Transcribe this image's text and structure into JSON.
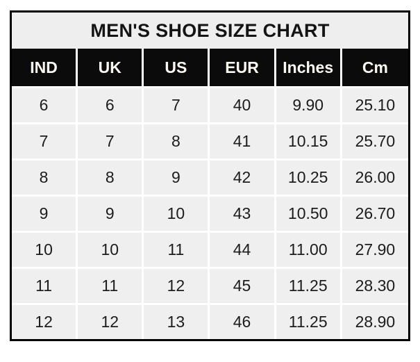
{
  "colors": {
    "page_bg": "#ffffff",
    "outer_border": "#000000",
    "title_bg": "#efeeee",
    "title_text": "#141414",
    "header_bg": "#0b0b0b",
    "header_text": "#fbfaf2",
    "cell_bg": "#f0efef",
    "cell_text": "#1c1c1c",
    "gridline": "#ffffff"
  },
  "chart_data": {
    "type": "table",
    "title": "MEN'S SHOE SIZE CHART",
    "columns": [
      "IND",
      "UK",
      "US",
      "EUR",
      "Inches",
      "Cm"
    ],
    "rows": [
      [
        "6",
        "6",
        "7",
        "40",
        "9.90",
        "25.10"
      ],
      [
        "7",
        "7",
        "8",
        "41",
        "10.15",
        "25.70"
      ],
      [
        "8",
        "8",
        "9",
        "42",
        "10.25",
        "26.00"
      ],
      [
        "9",
        "9",
        "10",
        "43",
        "10.50",
        "26.70"
      ],
      [
        "10",
        "10",
        "11",
        "44",
        "11.00",
        "27.90"
      ],
      [
        "11",
        "11",
        "12",
        "45",
        "11.25",
        "28.30"
      ],
      [
        "12",
        "12",
        "13",
        "46",
        "11.25",
        "28.90"
      ]
    ]
  }
}
